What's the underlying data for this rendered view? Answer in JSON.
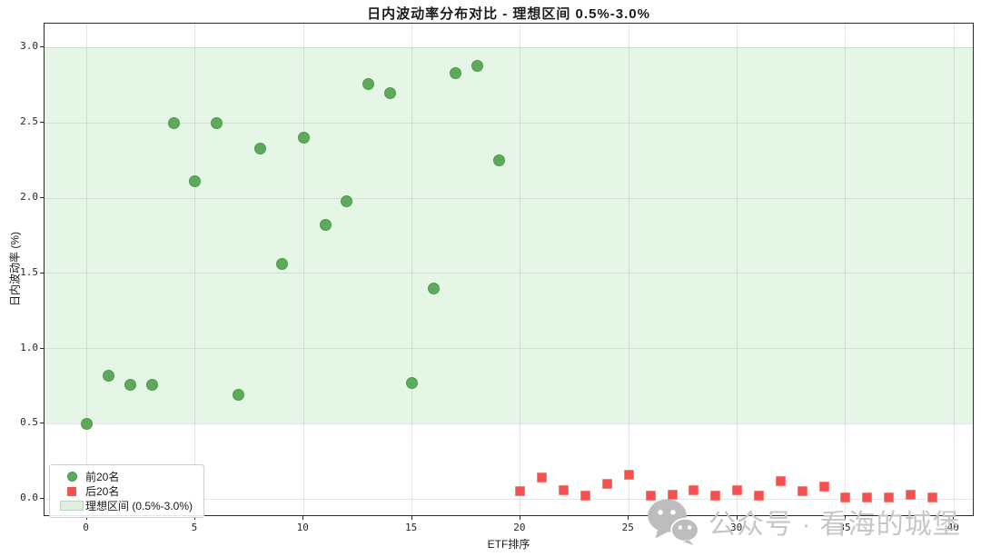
{
  "title": "日内波动率分布对比 - 理想区间 0.5%-3.0%",
  "colors": {
    "green_marker": "#5fa95c",
    "green_marker_edge": "#4c9a4a",
    "red_marker": "#f4514e",
    "red_marker_edge": "#f67f7b",
    "ideal_band": "#e5f6e6",
    "legend_patch": "#ddf2dd",
    "grid": "rgba(130,130,130,0.20)",
    "watermark": "#c6c6c6"
  },
  "chart_data": {
    "type": "scatter",
    "title": "日内波动率分布对比 - 理想区间 0.5%-3.0%",
    "xlabel": "ETF排序",
    "ylabel": "日内波动率 (%)",
    "xlim": [
      -1.95,
      40.95
    ],
    "ylim": [
      -0.12,
      3.16
    ],
    "x_ticks": [
      0,
      5,
      10,
      15,
      20,
      25,
      30,
      35,
      40
    ],
    "x_tick_labels": [
      "0",
      "5",
      "10",
      "15",
      "20",
      "25",
      "30",
      "35",
      "40"
    ],
    "y_ticks": [
      0.0,
      0.5,
      1.0,
      1.5,
      2.0,
      2.5,
      3.0
    ],
    "y_tick_labels": [
      "0.0",
      "0.5",
      "1.0",
      "1.5",
      "2.0",
      "2.5",
      "3.0"
    ],
    "grid": true,
    "legend_position": "lower-left",
    "ideal_band": {
      "ymin": 0.5,
      "ymax": 3.0,
      "label": "理想区间 (0.5%-3.0%)"
    },
    "series": [
      {
        "name": "前20名",
        "marker": "circle",
        "color": "#5fa95c",
        "x": [
          0,
          1,
          2,
          3,
          4,
          5,
          6,
          7,
          8,
          9,
          10,
          11,
          12,
          13,
          14,
          15,
          16,
          17,
          18,
          19
        ],
        "y": [
          0.5,
          0.82,
          0.76,
          0.76,
          2.5,
          2.11,
          2.5,
          0.69,
          2.33,
          1.56,
          2.4,
          1.82,
          1.98,
          2.76,
          2.7,
          0.77,
          1.4,
          2.83,
          2.88,
          2.25
        ]
      },
      {
        "name": "后20名",
        "marker": "square",
        "color": "#f4514e",
        "x": [
          20,
          21,
          22,
          23,
          24,
          25,
          26,
          27,
          28,
          29,
          30,
          31,
          32,
          33,
          34,
          35,
          36,
          37,
          38,
          39
        ],
        "y": [
          0.05,
          0.14,
          0.06,
          0.02,
          0.1,
          0.16,
          0.02,
          0.03,
          0.06,
          0.02,
          0.06,
          0.02,
          0.12,
          0.05,
          0.08,
          0.01,
          0.01,
          0.01,
          0.03,
          0.01
        ]
      }
    ]
  },
  "watermark": {
    "icon": "wechat-icon",
    "text": "公众号 · 看海的城堡"
  }
}
